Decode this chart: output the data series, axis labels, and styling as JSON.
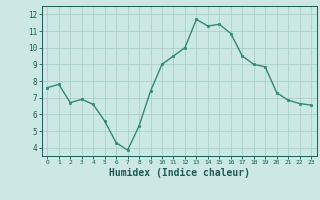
{
  "x": [
    0,
    1,
    2,
    3,
    4,
    5,
    6,
    7,
    8,
    9,
    10,
    11,
    12,
    13,
    14,
    15,
    16,
    17,
    18,
    19,
    20,
    21,
    22,
    23
  ],
  "y": [
    7.6,
    7.8,
    6.7,
    6.9,
    6.6,
    5.6,
    4.3,
    3.85,
    5.3,
    7.4,
    9.0,
    9.5,
    10.0,
    11.7,
    11.3,
    11.4,
    10.85,
    9.5,
    9.0,
    8.85,
    7.3,
    6.85,
    6.65,
    6.55
  ],
  "line_color": "#2e8b74",
  "marker": "s",
  "marker_size": 2,
  "bg_color": "#cce8e4",
  "grid_color": "#aacfcb",
  "xlabel": "Humidex (Indice chaleur)",
  "xlabel_fontsize": 7,
  "tick_color": "#1a5c52",
  "xlim": [
    -0.5,
    23.5
  ],
  "ylim": [
    3.5,
    12.5
  ],
  "yticks": [
    4,
    5,
    6,
    7,
    8,
    9,
    10,
    11,
    12
  ],
  "xticks": [
    0,
    1,
    2,
    3,
    4,
    5,
    6,
    7,
    8,
    9,
    10,
    11,
    12,
    13,
    14,
    15,
    16,
    17,
    18,
    19,
    20,
    21,
    22,
    23
  ],
  "xtick_labels": [
    "0",
    "1",
    "2",
    "3",
    "4",
    "5",
    "6",
    "7",
    "8",
    "9",
    "10",
    "11",
    "12",
    "13",
    "14",
    "15",
    "16",
    "17",
    "18",
    "19",
    "20",
    "21",
    "22",
    "23"
  ]
}
